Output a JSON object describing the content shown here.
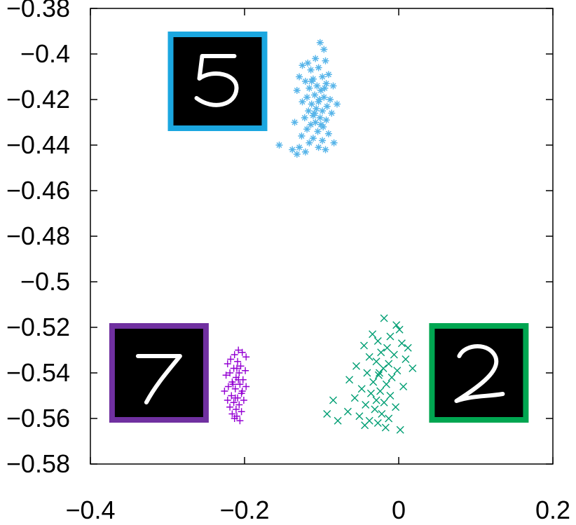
{
  "chart_data": {
    "type": "scatter",
    "title": "",
    "xlabel": "",
    "ylabel": "",
    "xlim": [
      -0.4,
      0.2
    ],
    "ylim": [
      -0.58,
      -0.38
    ],
    "grid": false,
    "x_ticks": [
      -0.4,
      -0.2,
      0,
      0.2
    ],
    "x_tick_labels": [
      "−0.4",
      "−0.2",
      "0",
      "0.2"
    ],
    "y_ticks": [
      -0.38,
      -0.4,
      -0.42,
      -0.44,
      -0.46,
      -0.48,
      -0.5,
      -0.52,
      -0.54,
      -0.56,
      -0.58
    ],
    "y_tick_labels": [
      "−0.38",
      "−0.4",
      "−0.42",
      "−0.44",
      "−0.46",
      "−0.48",
      "−0.5",
      "−0.52",
      "−0.54",
      "−0.56",
      "−0.58"
    ],
    "series": [
      {
        "digit": "5",
        "marker": "star",
        "color": "#56b4e9",
        "points": [
          [
            -0.102,
            -0.395
          ],
          [
            -0.097,
            -0.398
          ],
          [
            -0.108,
            -0.402
          ],
          [
            -0.118,
            -0.404
          ],
          [
            -0.095,
            -0.403
          ],
          [
            -0.125,
            -0.405
          ],
          [
            -0.114,
            -0.407
          ],
          [
            -0.104,
            -0.406
          ],
          [
            -0.091,
            -0.409
          ],
          [
            -0.129,
            -0.41
          ],
          [
            -0.099,
            -0.41
          ],
          [
            -0.111,
            -0.411
          ],
          [
            -0.121,
            -0.412
          ],
          [
            -0.094,
            -0.413
          ],
          [
            -0.106,
            -0.414
          ],
          [
            -0.116,
            -0.415
          ],
          [
            -0.085,
            -0.414
          ],
          [
            -0.101,
            -0.416
          ],
          [
            -0.132,
            -0.416
          ],
          [
            -0.109,
            -0.418
          ],
          [
            -0.097,
            -0.419
          ],
          [
            -0.119,
            -0.419
          ],
          [
            -0.089,
            -0.42
          ],
          [
            -0.104,
            -0.421
          ],
          [
            -0.113,
            -0.422
          ],
          [
            -0.125,
            -0.421
          ],
          [
            -0.093,
            -0.423
          ],
          [
            -0.08,
            -0.422
          ],
          [
            -0.107,
            -0.424
          ],
          [
            -0.099,
            -0.425
          ],
          [
            -0.117,
            -0.425
          ],
          [
            -0.087,
            -0.426
          ],
          [
            -0.111,
            -0.427
          ],
          [
            -0.102,
            -0.428
          ],
          [
            -0.122,
            -0.428
          ],
          [
            -0.094,
            -0.429
          ],
          [
            -0.108,
            -0.43
          ],
          [
            -0.114,
            -0.431
          ],
          [
            -0.135,
            -0.43
          ],
          [
            -0.098,
            -0.432
          ],
          [
            -0.119,
            -0.433
          ],
          [
            -0.105,
            -0.434
          ],
          [
            -0.091,
            -0.435
          ],
          [
            -0.126,
            -0.436
          ],
          [
            -0.111,
            -0.437
          ],
          [
            -0.099,
            -0.438
          ],
          [
            -0.116,
            -0.439
          ],
          [
            -0.084,
            -0.439
          ],
          [
            -0.129,
            -0.441
          ],
          [
            -0.104,
            -0.441
          ],
          [
            -0.138,
            -0.442
          ],
          [
            -0.121,
            -0.443
          ],
          [
            -0.095,
            -0.442
          ],
          [
            -0.132,
            -0.444
          ],
          [
            -0.155,
            -0.44
          ],
          [
            -0.113,
            -0.412
          ],
          [
            -0.103,
            -0.42
          ],
          [
            -0.096,
            -0.415
          ],
          [
            -0.109,
            -0.426
          ],
          [
            -0.101,
            -0.431
          ]
        ]
      },
      {
        "digit": "7",
        "marker": "plus",
        "color": "#9400d3",
        "points": [
          [
            -0.208,
            -0.53
          ],
          [
            -0.213,
            -0.532
          ],
          [
            -0.203,
            -0.531
          ],
          [
            -0.218,
            -0.534
          ],
          [
            -0.198,
            -0.533
          ],
          [
            -0.209,
            -0.535
          ],
          [
            -0.222,
            -0.536
          ],
          [
            -0.205,
            -0.537
          ],
          [
            -0.214,
            -0.538
          ],
          [
            -0.199,
            -0.539
          ],
          [
            -0.219,
            -0.54
          ],
          [
            -0.207,
            -0.54
          ],
          [
            -0.224,
            -0.541
          ],
          [
            -0.211,
            -0.542
          ],
          [
            -0.202,
            -0.543
          ],
          [
            -0.216,
            -0.544
          ],
          [
            -0.206,
            -0.545
          ],
          [
            -0.221,
            -0.546
          ],
          [
            -0.198,
            -0.546
          ],
          [
            -0.212,
            -0.547
          ],
          [
            -0.226,
            -0.548
          ],
          [
            -0.204,
            -0.549
          ],
          [
            -0.217,
            -0.55
          ],
          [
            -0.209,
            -0.551
          ],
          [
            -0.222,
            -0.552
          ],
          [
            -0.201,
            -0.552
          ],
          [
            -0.214,
            -0.553
          ],
          [
            -0.207,
            -0.554
          ],
          [
            -0.219,
            -0.555
          ],
          [
            -0.211,
            -0.556
          ],
          [
            -0.204,
            -0.557
          ],
          [
            -0.216,
            -0.558
          ],
          [
            -0.21,
            -0.559
          ],
          [
            -0.213,
            -0.56
          ],
          [
            -0.206,
            -0.561
          ],
          [
            -0.21,
            -0.538
          ],
          [
            -0.215,
            -0.545
          ],
          [
            -0.203,
            -0.548
          ],
          [
            -0.208,
            -0.543
          ],
          [
            -0.212,
            -0.551
          ]
        ]
      },
      {
        "digit": "2",
        "marker": "x",
        "color": "#009e73",
        "points": [
          [
            -0.019,
            -0.516
          ],
          [
            -0.003,
            -0.519
          ],
          [
            0.001,
            -0.521
          ],
          [
            -0.034,
            -0.523
          ],
          [
            -0.011,
            -0.524
          ],
          [
            -0.027,
            -0.526
          ],
          [
            0.004,
            -0.527
          ],
          [
            -0.045,
            -0.528
          ],
          [
            -0.015,
            -0.529
          ],
          [
            -0.023,
            -0.531
          ],
          [
            -0.006,
            -0.532
          ],
          [
            -0.038,
            -0.533
          ],
          [
            0.009,
            -0.534
          ],
          [
            -0.029,
            -0.535
          ],
          [
            -0.013,
            -0.536
          ],
          [
            -0.055,
            -0.537
          ],
          [
            -0.02,
            -0.538
          ],
          [
            -0.002,
            -0.539
          ],
          [
            -0.041,
            -0.54
          ],
          [
            -0.026,
            -0.541
          ],
          [
            -0.009,
            -0.542
          ],
          [
            -0.064,
            -0.543
          ],
          [
            -0.033,
            -0.544
          ],
          [
            -0.016,
            -0.545
          ],
          [
            0.006,
            -0.546
          ],
          [
            -0.048,
            -0.547
          ],
          [
            -0.024,
            -0.548
          ],
          [
            -0.036,
            -0.549
          ],
          [
            -0.011,
            -0.55
          ],
          [
            -0.057,
            -0.551
          ],
          [
            -0.029,
            -0.552
          ],
          [
            -0.019,
            -0.553
          ],
          [
            -0.043,
            -0.554
          ],
          [
            -0.004,
            -0.555
          ],
          [
            -0.031,
            -0.556
          ],
          [
            -0.066,
            -0.557
          ],
          [
            -0.022,
            -0.558
          ],
          [
            -0.051,
            -0.559
          ],
          [
            -0.013,
            -0.56
          ],
          [
            -0.038,
            -0.561
          ],
          [
            -0.027,
            -0.562
          ],
          [
            -0.044,
            -0.563
          ],
          [
            -0.017,
            -0.564
          ],
          [
            0.002,
            -0.565
          ],
          [
            -0.093,
            -0.558
          ],
          [
            -0.079,
            -0.561
          ],
          [
            -0.085,
            -0.552
          ],
          [
            0.012,
            -0.529
          ],
          [
            0.018,
            -0.538
          ],
          [
            -0.025,
            -0.54
          ]
        ]
      }
    ],
    "insets": [
      {
        "digit": "5",
        "frame_color": "#1ba7e0",
        "center": [
          -0.235,
          -0.412
        ]
      },
      {
        "digit": "7",
        "frame_color": "#7030a0",
        "center": [
          -0.311,
          -0.54
        ]
      },
      {
        "digit": "2",
        "frame_color": "#00a651",
        "center": [
          0.104,
          -0.54
        ]
      }
    ]
  }
}
